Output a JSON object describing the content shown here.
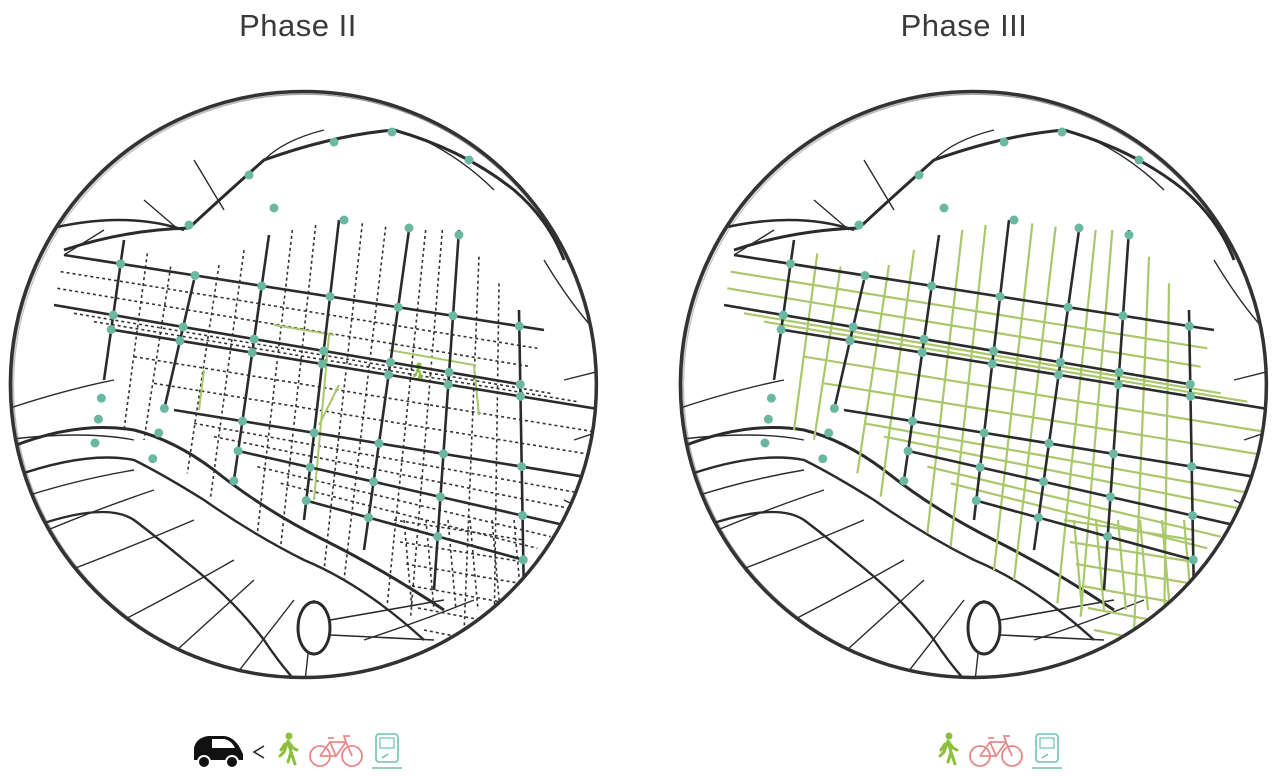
{
  "panels": {
    "left": {
      "title": "Phase II",
      "legend": [
        {
          "icon": "car-icon",
          "color": "#111111"
        },
        {
          "symbol": "<",
          "color": "#222222"
        },
        {
          "icon": "pedestrian-icon",
          "color": "#8bbf3c"
        },
        {
          "icon": "bicycle-icon",
          "color": "#e88a8a"
        },
        {
          "icon": "transit-icon",
          "color": "#6cc3b0"
        }
      ]
    },
    "right": {
      "title": "Phase III",
      "legend": [
        {
          "icon": "pedestrian-icon",
          "color": "#8bbf3c"
        },
        {
          "icon": "bicycle-icon",
          "color": "#e88a8a"
        },
        {
          "icon": "transit-icon",
          "color": "#6cc3b0"
        }
      ]
    }
  },
  "colors": {
    "road": "#2b2b2b",
    "dotted_street": "#333333",
    "green_street": "#a9c86b",
    "node": "#6ab7a2",
    "circle_border": "#333333"
  }
}
